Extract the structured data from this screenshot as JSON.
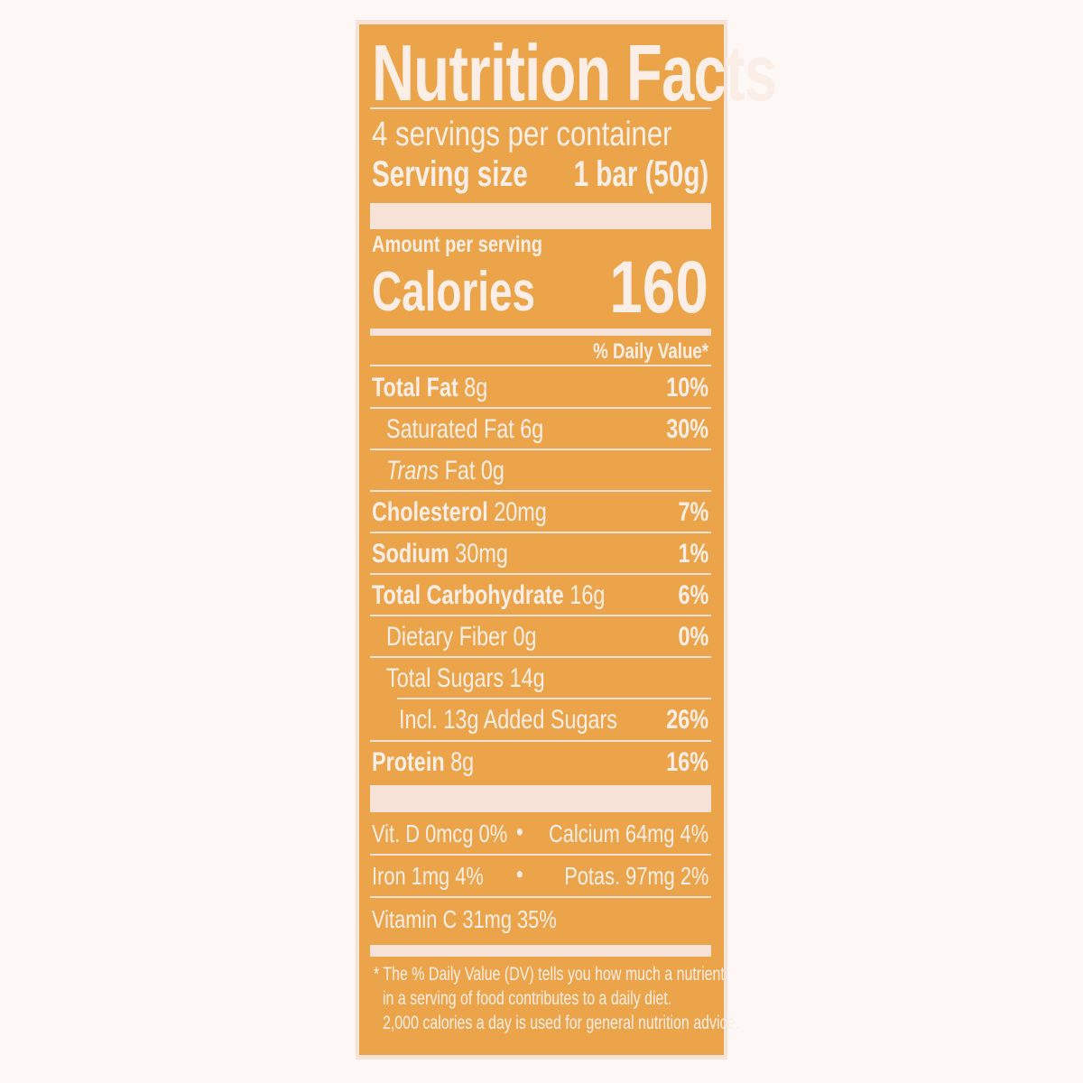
{
  "title": "Nutrition Facts",
  "servings_per_container": "4 servings per container",
  "serving_size_label": "Serving size",
  "serving_size_value": "1 bar (50g)",
  "amount_per_serving": "Amount per serving",
  "calories_label": "Calories",
  "calories_value": "160",
  "dv_header": "% Daily Value*",
  "nutrients": [
    {
      "label": "Total Fat",
      "amount": "8g",
      "dv": "10%"
    },
    {
      "label": "Saturated Fat",
      "amount": "6g",
      "dv": "30%"
    },
    {
      "label": "Trans",
      "amount": "Fat 0g",
      "dv": ""
    },
    {
      "label": "Cholesterol",
      "amount": "20mg",
      "dv": "7%"
    },
    {
      "label": "Sodium",
      "amount": "30mg",
      "dv": "1%"
    },
    {
      "label": "Total Carbohydrate",
      "amount": "16g",
      "dv": "6%"
    },
    {
      "label": "Dietary Fiber",
      "amount": "0g",
      "dv": "0%"
    },
    {
      "label": "Total Sugars",
      "amount": "14g",
      "dv": ""
    },
    {
      "label": "Incl. 13g Added Sugars",
      "amount": "",
      "dv": "26%"
    },
    {
      "label": "Protein",
      "amount": "8g",
      "dv": "16%"
    }
  ],
  "vitamins": {
    "row1_left": "Vit. D 0mcg 0%",
    "row1_right": "Calcium 64mg 4%",
    "row2_left": "Iron 1mg 4%",
    "row2_right": "Potas. 97mg 2%",
    "row3_left": "Vitamin C 31mg 35%",
    "bullet": "•"
  },
  "footnote": [
    "* The % Daily Value (DV) tells you how much a nutrient",
    "in a serving of food contributes to a daily diet.",
    "2,000 calories a day is used for general nutrition advice."
  ],
  "colors": {
    "panel": "#eca44a",
    "text": "#fbeee6"
  }
}
